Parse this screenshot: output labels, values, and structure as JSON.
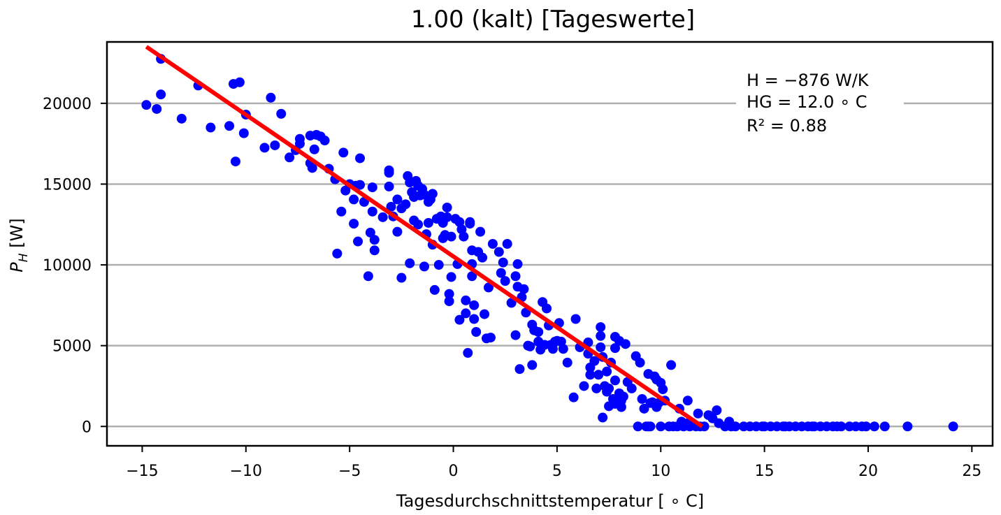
{
  "chart_data": {
    "type": "scatter",
    "title": "1.00 (kalt) [Tageswerte]",
    "xlabel": "Tagesdurchschnittstemperatur [ ∘ C]",
    "ylabel": {
      "main": "P",
      "sub": "H",
      "unit": " [W]"
    },
    "xlim": [
      -16.7,
      26
    ],
    "ylim": [
      -1200,
      23800
    ],
    "xticks": [
      -15,
      -10,
      -5,
      0,
      5,
      10,
      15,
      20,
      25
    ],
    "xtick_labels": [
      "−15",
      "−10",
      "−5",
      "0",
      "5",
      "10",
      "15",
      "20",
      "25"
    ],
    "yticks": [
      0,
      5000,
      10000,
      15000,
      20000
    ],
    "ytick_labels": [
      "0",
      "5000",
      "10000",
      "15000",
      "20000"
    ],
    "grid": "horizontal",
    "annotations": [
      "H = −876 W/K",
      "HG = 12.0 ∘ C",
      "R² = 0.88"
    ],
    "colors": {
      "points": "#0000ff",
      "fit": "#ff0000",
      "grid": "#b0b0b0"
    },
    "fit_line": {
      "x": [
        -14.8,
        12.0
      ],
      "y": [
        23500,
        0
      ]
    },
    "series": [
      {
        "points": [
          [
            -14.8,
            19900
          ],
          [
            -14.3,
            19650
          ],
          [
            -14.1,
            22750
          ],
          [
            -14.1,
            20550
          ],
          [
            -13.1,
            19050
          ],
          [
            -12.3,
            21100
          ],
          [
            -10.8,
            18600
          ],
          [
            -10.5,
            16400
          ],
          [
            -10.6,
            21200
          ],
          [
            -10.3,
            21300
          ],
          [
            -10.0,
            19300
          ],
          [
            -10.1,
            18150
          ],
          [
            -8.8,
            20350
          ],
          [
            -8.6,
            17400
          ],
          [
            -8.3,
            19350
          ],
          [
            -7.9,
            16650
          ],
          [
            -7.4,
            17800
          ],
          [
            -7.4,
            17500
          ],
          [
            -6.8,
            16000
          ],
          [
            -6.9,
            18000
          ],
          [
            -6.7,
            17150
          ],
          [
            -6.6,
            18050
          ],
          [
            -6.4,
            17950
          ],
          [
            -6.2,
            17700
          ],
          [
            -5.7,
            15300
          ],
          [
            -5.6,
            10700
          ],
          [
            -5.3,
            16950
          ],
          [
            -5.4,
            13300
          ],
          [
            -5.2,
            14600
          ],
          [
            -5.0,
            15000
          ],
          [
            -4.8,
            14050
          ],
          [
            -4.8,
            12550
          ],
          [
            -4.7,
            14900
          ],
          [
            -4.6,
            11450
          ],
          [
            -4.5,
            16600
          ],
          [
            -4.5,
            14950
          ],
          [
            -4.1,
            9300
          ],
          [
            -4.0,
            12000
          ],
          [
            -3.8,
            10900
          ],
          [
            -3.8,
            11550
          ],
          [
            -3.9,
            14800
          ],
          [
            -3.9,
            13300
          ],
          [
            -3.1,
            15850
          ],
          [
            -3.1,
            15700
          ],
          [
            -3.1,
            14850
          ],
          [
            -3.0,
            13600
          ],
          [
            -2.9,
            13000
          ],
          [
            -2.7,
            14050
          ],
          [
            -2.5,
            9200
          ],
          [
            -2.5,
            13500
          ],
          [
            -2.3,
            13750
          ],
          [
            -2.2,
            15500
          ],
          [
            -2.1,
            15100
          ],
          [
            -2.1,
            10100
          ],
          [
            -2.0,
            14500
          ],
          [
            -1.9,
            12750
          ],
          [
            -1.9,
            14200
          ],
          [
            -1.8,
            15200
          ],
          [
            -1.7,
            14900
          ],
          [
            -1.6,
            14300
          ],
          [
            -1.7,
            12500
          ],
          [
            -1.5,
            14700
          ],
          [
            -1.4,
            14350
          ],
          [
            -1.4,
            9900
          ],
          [
            -1.2,
            13900
          ],
          [
            -1.2,
            12600
          ],
          [
            -1.1,
            14050
          ],
          [
            -1.0,
            14400
          ],
          [
            -1.0,
            11250
          ],
          [
            -0.9,
            8450
          ],
          [
            -0.8,
            12850
          ],
          [
            -0.7,
            10000
          ],
          [
            -0.5,
            12600
          ],
          [
            -0.6,
            13000
          ],
          [
            -0.5,
            11650
          ],
          [
            -0.4,
            11850
          ],
          [
            -0.3,
            13550
          ],
          [
            -0.3,
            12950
          ],
          [
            -0.2,
            7750
          ],
          [
            -0.2,
            8200
          ],
          [
            -0.1,
            9250
          ],
          [
            -0.1,
            11750
          ],
          [
            0.1,
            12850
          ],
          [
            0.3,
            12650
          ],
          [
            0.3,
            6600
          ],
          [
            0.4,
            12200
          ],
          [
            0.5,
            11750
          ],
          [
            0.6,
            7800
          ],
          [
            0.6,
            7000
          ],
          [
            0.7,
            4550
          ],
          [
            0.8,
            12550
          ],
          [
            0.8,
            12650
          ],
          [
            0.9,
            10900
          ],
          [
            0.9,
            9300
          ],
          [
            0.9,
            10050
          ],
          [
            1.0,
            7500
          ],
          [
            1.1,
            5850
          ],
          [
            1.0,
            6650
          ],
          [
            1.2,
            10800
          ],
          [
            1.3,
            12050
          ],
          [
            1.4,
            10450
          ],
          [
            1.5,
            6950
          ],
          [
            1.6,
            5450
          ],
          [
            1.8,
            5500
          ],
          [
            1.9,
            11300
          ],
          [
            2.2,
            10800
          ],
          [
            2.3,
            9500
          ],
          [
            2.4,
            10150
          ],
          [
            2.5,
            9000
          ],
          [
            2.6,
            11300
          ],
          [
            2.8,
            7650
          ],
          [
            3.0,
            9300
          ],
          [
            3.1,
            10050
          ],
          [
            3.0,
            5650
          ],
          [
            3.1,
            8650
          ],
          [
            3.2,
            3550
          ],
          [
            3.3,
            8000
          ],
          [
            3.5,
            7050
          ],
          [
            3.4,
            8500
          ],
          [
            3.6,
            5000
          ],
          [
            3.7,
            4950
          ],
          [
            3.8,
            3800
          ],
          [
            3.9,
            5950
          ],
          [
            4.1,
            5250
          ],
          [
            4.1,
            5850
          ],
          [
            4.2,
            4750
          ],
          [
            4.3,
            7700
          ],
          [
            4.4,
            5050
          ],
          [
            4.5,
            7300
          ],
          [
            4.6,
            6250
          ],
          [
            4.7,
            5050
          ],
          [
            4.8,
            4800
          ],
          [
            4.9,
            5250
          ],
          [
            5.1,
            6400
          ],
          [
            5.2,
            5250
          ],
          [
            5.3,
            4800
          ],
          [
            5.5,
            3950
          ],
          [
            5.8,
            1800
          ],
          [
            5.9,
            6650
          ],
          [
            6.3,
            2500
          ],
          [
            6.5,
            5200
          ],
          [
            6.5,
            4500
          ],
          [
            6.6,
            3200
          ],
          [
            6.6,
            3650
          ],
          [
            6.8,
            4050
          ],
          [
            6.9,
            2350
          ],
          [
            7.0,
            3200
          ],
          [
            7.1,
            6150
          ],
          [
            7.1,
            5600
          ],
          [
            7.1,
            4900
          ],
          [
            7.2,
            4300
          ],
          [
            7.2,
            550
          ],
          [
            7.3,
            2500
          ],
          [
            7.4,
            2150
          ],
          [
            7.5,
            1250
          ],
          [
            7.5,
            2350
          ],
          [
            7.6,
            3950
          ],
          [
            7.7,
            1700
          ],
          [
            7.8,
            1400
          ],
          [
            7.8,
            5550
          ],
          [
            7.8,
            2850
          ],
          [
            7.8,
            4850
          ],
          [
            8.0,
            5300
          ],
          [
            8.0,
            2050
          ],
          [
            8.1,
            1600
          ],
          [
            8.1,
            1200
          ],
          [
            8.2,
            1850
          ],
          [
            8.3,
            5100
          ],
          [
            8.4,
            2750
          ],
          [
            8.8,
            4350
          ],
          [
            8.9,
            0
          ],
          [
            9.0,
            3950
          ],
          [
            9.1,
            1700
          ],
          [
            9.2,
            1100
          ],
          [
            9.3,
            0
          ],
          [
            9.4,
            0
          ],
          [
            9.5,
            0
          ],
          [
            9.4,
            3250
          ],
          [
            9.5,
            1450
          ],
          [
            9.6,
            1500
          ],
          [
            9.7,
            3100
          ],
          [
            9.8,
            2900
          ],
          [
            9.9,
            1450
          ],
          [
            10.0,
            0
          ],
          [
            10.0,
            2700
          ],
          [
            10.1,
            2300
          ],
          [
            10.2,
            1600
          ],
          [
            10.4,
            0
          ],
          [
            10.5,
            3800
          ],
          [
            10.6,
            0
          ],
          [
            10.8,
            0
          ],
          [
            10.9,
            1100
          ],
          [
            11.0,
            300
          ],
          [
            11.1,
            0
          ],
          [
            11.3,
            200
          ],
          [
            11.4,
            0
          ],
          [
            11.6,
            100
          ],
          [
            11.7,
            0
          ],
          [
            11.9,
            0
          ],
          [
            12.1,
            0
          ],
          [
            12.3,
            700
          ],
          [
            12.5,
            500
          ],
          [
            12.8,
            200
          ],
          [
            13.1,
            0
          ],
          [
            13.3,
            300
          ],
          [
            13.6,
            0
          ],
          [
            14.0,
            0
          ],
          [
            14.3,
            0
          ],
          [
            14.6,
            0
          ],
          [
            15.0,
            0
          ],
          [
            15.3,
            0
          ],
          [
            15.6,
            0
          ],
          [
            15.9,
            0
          ],
          [
            16.2,
            0
          ],
          [
            16.5,
            0
          ],
          [
            16.8,
            0
          ],
          [
            17.1,
            0
          ],
          [
            17.4,
            0
          ],
          [
            17.7,
            0
          ],
          [
            18.0,
            0
          ],
          [
            18.3,
            0
          ],
          [
            18.7,
            0
          ],
          [
            19.1,
            0
          ],
          [
            19.4,
            0
          ],
          [
            19.7,
            0
          ],
          [
            20.3,
            0
          ],
          [
            20.8,
            0
          ],
          [
            21.9,
            0
          ],
          [
            24.1,
            0
          ],
          [
            -11.7,
            18500
          ],
          [
            -9.1,
            17250
          ],
          [
            -7.6,
            17100
          ],
          [
            -6.9,
            16300
          ],
          [
            -6.0,
            15950
          ],
          [
            -4.3,
            13900
          ],
          [
            -3.4,
            12950
          ],
          [
            -2.7,
            12050
          ],
          [
            -1.3,
            11900
          ],
          [
            0.2,
            10050
          ],
          [
            1.7,
            8600
          ],
          [
            3.8,
            6300
          ],
          [
            5.0,
            5300
          ],
          [
            6.1,
            4900
          ],
          [
            7.4,
            3400
          ],
          [
            8.6,
            2350
          ],
          [
            9.8,
            1200
          ],
          [
            11.3,
            1600
          ],
          [
            11.8,
            800
          ],
          [
            12.7,
            1000
          ],
          [
            13.4,
            0
          ],
          [
            14.9,
            0
          ],
          [
            16.0,
            0
          ],
          [
            17.3,
            0
          ],
          [
            18.5,
            0
          ],
          [
            19.9,
            0
          ]
        ]
      }
    ]
  }
}
